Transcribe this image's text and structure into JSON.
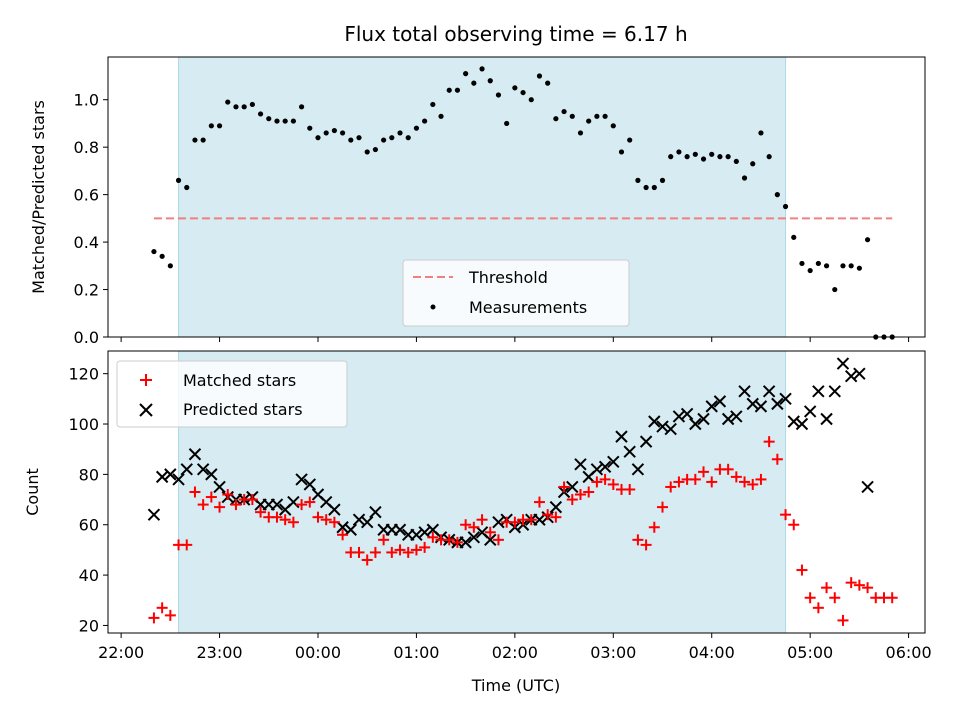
{
  "chart_data": [
    {
      "type": "scatter",
      "title": "Flux total observing time = 6.17 h",
      "xlabel": "",
      "ylabel": "Matched/Predicted stars",
      "xlim": [
        "2024-01-01T21:52",
        "2024-01-02T06:10"
      ],
      "ylim": [
        0,
        1.18
      ],
      "yticks": [
        0.0,
        0.2,
        0.4,
        0.6,
        0.8,
        1.0
      ],
      "yticklabels": [
        "0.0",
        "0.2",
        "0.4",
        "0.6",
        "0.8",
        "1.0"
      ],
      "shaded_span": [
        "2024-01-01T22:35",
        "2024-01-02T04:45"
      ],
      "threshold": {
        "name": "Threshold",
        "y": 0.5,
        "x": [
          "2024-01-01T22:20",
          "2024-01-02T05:50"
        ],
        "color": "#f08080"
      },
      "legend_position": "lower center",
      "series": [
        {
          "name": "Measurements",
          "color": "#000000",
          "x": [
            "2024-01-01T22:20",
            "2024-01-01T22:25",
            "2024-01-01T22:30",
            "2024-01-01T22:35",
            "2024-01-01T22:40",
            "2024-01-01T22:45",
            "2024-01-01T22:50",
            "2024-01-01T22:55",
            "2024-01-01T23:00",
            "2024-01-01T23:05",
            "2024-01-01T23:10",
            "2024-01-01T23:15",
            "2024-01-01T23:20",
            "2024-01-01T23:25",
            "2024-01-01T23:30",
            "2024-01-01T23:35",
            "2024-01-01T23:40",
            "2024-01-01T23:45",
            "2024-01-01T23:50",
            "2024-01-01T23:55",
            "2024-01-02T00:00",
            "2024-01-02T00:05",
            "2024-01-02T00:10",
            "2024-01-02T00:15",
            "2024-01-02T00:20",
            "2024-01-02T00:25",
            "2024-01-02T00:30",
            "2024-01-02T00:35",
            "2024-01-02T00:40",
            "2024-01-02T00:45",
            "2024-01-02T00:50",
            "2024-01-02T00:55",
            "2024-01-02T01:00",
            "2024-01-02T01:05",
            "2024-01-02T01:10",
            "2024-01-02T01:15",
            "2024-01-02T01:20",
            "2024-01-02T01:25",
            "2024-01-02T01:30",
            "2024-01-02T01:35",
            "2024-01-02T01:40",
            "2024-01-02T01:45",
            "2024-01-02T01:50",
            "2024-01-02T01:55",
            "2024-01-02T02:00",
            "2024-01-02T02:05",
            "2024-01-02T02:10",
            "2024-01-02T02:15",
            "2024-01-02T02:20",
            "2024-01-02T02:25",
            "2024-01-02T02:30",
            "2024-01-02T02:35",
            "2024-01-02T02:40",
            "2024-01-02T02:45",
            "2024-01-02T02:50",
            "2024-01-02T02:55",
            "2024-01-02T03:00",
            "2024-01-02T03:05",
            "2024-01-02T03:10",
            "2024-01-02T03:15",
            "2024-01-02T03:20",
            "2024-01-02T03:25",
            "2024-01-02T03:30",
            "2024-01-02T03:35",
            "2024-01-02T03:40",
            "2024-01-02T03:45",
            "2024-01-02T03:50",
            "2024-01-02T03:55",
            "2024-01-02T04:00",
            "2024-01-02T04:05",
            "2024-01-02T04:10",
            "2024-01-02T04:15",
            "2024-01-02T04:20",
            "2024-01-02T04:25",
            "2024-01-02T04:30",
            "2024-01-02T04:35",
            "2024-01-02T04:40",
            "2024-01-02T04:45",
            "2024-01-02T04:50",
            "2024-01-02T04:55",
            "2024-01-02T05:00",
            "2024-01-02T05:05",
            "2024-01-02T05:10",
            "2024-01-02T05:15",
            "2024-01-02T05:20",
            "2024-01-02T05:25",
            "2024-01-02T05:30",
            "2024-01-02T05:35",
            "2024-01-02T05:40",
            "2024-01-02T05:45",
            "2024-01-02T05:50"
          ],
          "y": [
            0.36,
            0.34,
            0.3,
            0.66,
            0.63,
            0.83,
            0.83,
            0.89,
            0.89,
            0.99,
            0.97,
            0.97,
            0.98,
            0.94,
            0.92,
            0.91,
            0.91,
            0.91,
            0.97,
            0.88,
            0.84,
            0.86,
            0.87,
            0.86,
            0.83,
            0.84,
            0.78,
            0.79,
            0.83,
            0.84,
            0.86,
            0.84,
            0.88,
            0.91,
            0.98,
            0.93,
            1.04,
            1.04,
            1.11,
            1.07,
            1.13,
            1.08,
            1.02,
            0.9,
            1.05,
            1.03,
            1.0,
            1.1,
            1.07,
            0.92,
            0.95,
            0.93,
            0.86,
            0.91,
            0.93,
            0.93,
            0.89,
            0.78,
            0.83,
            0.66,
            0.63,
            0.63,
            0.66,
            0.76,
            0.78,
            0.76,
            0.77,
            0.75,
            0.77,
            0.76,
            0.76,
            0.74,
            0.67,
            0.73,
            0.86,
            0.76,
            0.6,
            0.55,
            0.42,
            0.31,
            0.28,
            0.31,
            0.3,
            0.2,
            0.3,
            0.3,
            0.29,
            0.41,
            0.0,
            0.0,
            0.0
          ]
        }
      ]
    },
    {
      "type": "scatter",
      "title": "",
      "xlabel": "Time (UTC)",
      "ylabel": "Count",
      "xlim": [
        "2024-01-01T21:52",
        "2024-01-02T06:10"
      ],
      "ylim": [
        17,
        129
      ],
      "yticks": [
        20,
        40,
        60,
        80,
        100,
        120
      ],
      "yticklabels": [
        "20",
        "40",
        "60",
        "80",
        "100",
        "120"
      ],
      "xticks": [
        "2024-01-01T22:00",
        "2024-01-01T23:00",
        "2024-01-02T00:00",
        "2024-01-02T01:00",
        "2024-01-02T02:00",
        "2024-01-02T03:00",
        "2024-01-02T04:00",
        "2024-01-02T05:00",
        "2024-01-02T06:00"
      ],
      "xticklabels": [
        "22:00",
        "23:00",
        "00:00",
        "01:00",
        "02:00",
        "03:00",
        "04:00",
        "05:00",
        "06:00"
      ],
      "shaded_span": [
        "2024-01-01T22:35",
        "2024-01-02T04:45"
      ],
      "legend_position": "upper left",
      "series": [
        {
          "name": "Matched stars",
          "marker": "plus",
          "color": "#ff0000",
          "x": [
            "2024-01-01T22:20",
            "2024-01-01T22:25",
            "2024-01-01T22:30",
            "2024-01-01T22:35",
            "2024-01-01T22:40",
            "2024-01-01T22:45",
            "2024-01-01T22:50",
            "2024-01-01T22:55",
            "2024-01-01T23:00",
            "2024-01-01T23:05",
            "2024-01-01T23:10",
            "2024-01-01T23:15",
            "2024-01-01T23:20",
            "2024-01-01T23:25",
            "2024-01-01T23:30",
            "2024-01-01T23:35",
            "2024-01-01T23:40",
            "2024-01-01T23:45",
            "2024-01-01T23:50",
            "2024-01-01T23:55",
            "2024-01-02T00:00",
            "2024-01-02T00:05",
            "2024-01-02T00:10",
            "2024-01-02T00:15",
            "2024-01-02T00:20",
            "2024-01-02T00:25",
            "2024-01-02T00:30",
            "2024-01-02T00:35",
            "2024-01-02T00:40",
            "2024-01-02T00:45",
            "2024-01-02T00:50",
            "2024-01-02T00:55",
            "2024-01-02T01:00",
            "2024-01-02T01:05",
            "2024-01-02T01:10",
            "2024-01-02T01:15",
            "2024-01-02T01:20",
            "2024-01-02T01:25",
            "2024-01-02T01:30",
            "2024-01-02T01:35",
            "2024-01-02T01:40",
            "2024-01-02T01:45",
            "2024-01-02T01:50",
            "2024-01-02T01:55",
            "2024-01-02T02:00",
            "2024-01-02T02:05",
            "2024-01-02T02:10",
            "2024-01-02T02:15",
            "2024-01-02T02:20",
            "2024-01-02T02:25",
            "2024-01-02T02:30",
            "2024-01-02T02:35",
            "2024-01-02T02:40",
            "2024-01-02T02:45",
            "2024-01-02T02:50",
            "2024-01-02T02:55",
            "2024-01-02T03:00",
            "2024-01-02T03:05",
            "2024-01-02T03:10",
            "2024-01-02T03:15",
            "2024-01-02T03:20",
            "2024-01-02T03:25",
            "2024-01-02T03:30",
            "2024-01-02T03:35",
            "2024-01-02T03:40",
            "2024-01-02T03:45",
            "2024-01-02T03:50",
            "2024-01-02T03:55",
            "2024-01-02T04:00",
            "2024-01-02T04:05",
            "2024-01-02T04:10",
            "2024-01-02T04:15",
            "2024-01-02T04:20",
            "2024-01-02T04:25",
            "2024-01-02T04:30",
            "2024-01-02T04:35",
            "2024-01-02T04:40",
            "2024-01-02T04:45",
            "2024-01-02T04:50",
            "2024-01-02T04:55",
            "2024-01-02T05:00",
            "2024-01-02T05:05",
            "2024-01-02T05:10",
            "2024-01-02T05:15",
            "2024-01-02T05:20",
            "2024-01-02T05:25",
            "2024-01-02T05:30",
            "2024-01-02T05:35",
            "2024-01-02T05:40",
            "2024-01-02T05:45",
            "2024-01-02T05:50"
          ],
          "y": [
            23,
            27,
            24,
            52,
            52,
            73,
            68,
            71,
            67,
            72,
            68,
            70,
            70,
            65,
            63,
            63,
            62,
            61,
            68,
            69,
            63,
            62,
            61,
            56,
            49,
            49,
            46,
            49,
            54,
            49,
            50,
            49,
            50,
            51,
            55,
            54,
            54,
            53,
            60,
            59,
            62,
            57,
            54,
            61,
            61,
            62,
            62,
            69,
            64,
            63,
            75,
            70,
            72,
            73,
            77,
            78,
            76,
            74,
            74,
            54,
            52,
            59,
            67,
            75,
            77,
            78,
            78,
            81,
            77,
            82,
            82,
            79,
            77,
            76,
            78,
            93,
            86,
            64,
            60,
            42,
            31,
            27,
            35,
            31,
            22,
            37,
            36,
            35,
            31,
            31,
            31
          ]
        },
        {
          "name": "Predicted stars",
          "marker": "x",
          "color": "#000000",
          "x": [
            "2024-01-01T22:20",
            "2024-01-01T22:25",
            "2024-01-01T22:30",
            "2024-01-01T22:35",
            "2024-01-01T22:40",
            "2024-01-01T22:45",
            "2024-01-01T22:50",
            "2024-01-01T22:55",
            "2024-01-01T23:00",
            "2024-01-01T23:05",
            "2024-01-01T23:10",
            "2024-01-01T23:15",
            "2024-01-01T23:20",
            "2024-01-01T23:25",
            "2024-01-01T23:30",
            "2024-01-01T23:35",
            "2024-01-01T23:40",
            "2024-01-01T23:45",
            "2024-01-01T23:50",
            "2024-01-01T23:55",
            "2024-01-02T00:00",
            "2024-01-02T00:05",
            "2024-01-02T00:10",
            "2024-01-02T00:15",
            "2024-01-02T00:20",
            "2024-01-02T00:25",
            "2024-01-02T00:30",
            "2024-01-02T00:35",
            "2024-01-02T00:40",
            "2024-01-02T00:45",
            "2024-01-02T00:50",
            "2024-01-02T00:55",
            "2024-01-02T01:00",
            "2024-01-02T01:05",
            "2024-01-02T01:10",
            "2024-01-02T01:15",
            "2024-01-02T01:20",
            "2024-01-02T01:25",
            "2024-01-02T01:30",
            "2024-01-02T01:35",
            "2024-01-02T01:40",
            "2024-01-02T01:45",
            "2024-01-02T01:50",
            "2024-01-02T01:55",
            "2024-01-02T02:00",
            "2024-01-02T02:05",
            "2024-01-02T02:10",
            "2024-01-02T02:15",
            "2024-01-02T02:20",
            "2024-01-02T02:25",
            "2024-01-02T02:30",
            "2024-01-02T02:35",
            "2024-01-02T02:40",
            "2024-01-02T02:45",
            "2024-01-02T02:50",
            "2024-01-02T02:55",
            "2024-01-02T03:00",
            "2024-01-02T03:05",
            "2024-01-02T03:10",
            "2024-01-02T03:15",
            "2024-01-02T03:20",
            "2024-01-02T03:25",
            "2024-01-02T03:30",
            "2024-01-02T03:35",
            "2024-01-02T03:40",
            "2024-01-02T03:45",
            "2024-01-02T03:50",
            "2024-01-02T03:55",
            "2024-01-02T04:00",
            "2024-01-02T04:05",
            "2024-01-02T04:10",
            "2024-01-02T04:15",
            "2024-01-02T04:20",
            "2024-01-02T04:25",
            "2024-01-02T04:30",
            "2024-01-02T04:35",
            "2024-01-02T04:40",
            "2024-01-02T04:45",
            "2024-01-02T04:50",
            "2024-01-02T04:55",
            "2024-01-02T05:00",
            "2024-01-02T05:05",
            "2024-01-02T05:10",
            "2024-01-02T05:15",
            "2024-01-02T05:20",
            "2024-01-02T05:25",
            "2024-01-02T05:30",
            "2024-01-02T05:35"
          ],
          "y": [
            64,
            79,
            80,
            78,
            82,
            88,
            82,
            80,
            75,
            71,
            70,
            70,
            71,
            68,
            68,
            68,
            66,
            69,
            78,
            76,
            72,
            69,
            66,
            59,
            58,
            62,
            61,
            65,
            58,
            58,
            58,
            56,
            56,
            57,
            58,
            55,
            54,
            53,
            53,
            55,
            57,
            54,
            61,
            62,
            59,
            60,
            62,
            62,
            63,
            67,
            73,
            75,
            84,
            79,
            82,
            83,
            85,
            95,
            89,
            82,
            93,
            101,
            99,
            98,
            103,
            104,
            100,
            102,
            107,
            109,
            102,
            103,
            113,
            108,
            107,
            113,
            108,
            110,
            101,
            100,
            105,
            113,
            102,
            113,
            124,
            119,
            120,
            75
          ]
        }
      ]
    }
  ]
}
